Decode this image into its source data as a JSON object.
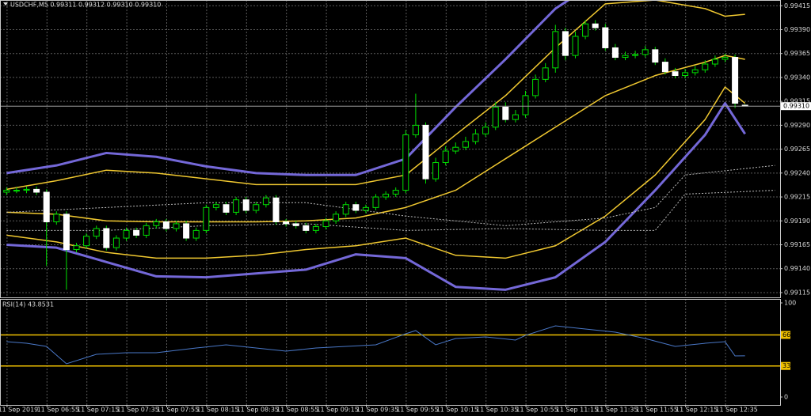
{
  "chart_data": [
    {
      "type": "candlestick",
      "title": "USDCHF,M5  0.99311 0.99312 0.99310 0.99310",
      "categories": [
        null,
        "11 Sep 2019",
        null,
        null,
        null,
        "11 Sep 06:55",
        null,
        null,
        null,
        "11 Sep 07:15",
        null,
        null,
        null,
        "11 Sep 07:35",
        null,
        null,
        null,
        "11 Sep 07:55",
        null,
        null,
        null,
        "11 Sep 08:15",
        null,
        null,
        null,
        "11 Sep 08:35",
        null,
        null,
        null,
        "11 Sep 08:55",
        null,
        null,
        null,
        "11 Sep 09:15",
        null,
        null,
        null,
        "11 Sep 09:35",
        null,
        null,
        null,
        "11 Sep 09:55",
        null,
        null,
        null,
        "11 Sep 10:15",
        null,
        null,
        null,
        "11 Sep 10:35",
        null,
        null,
        null,
        "11 Sep 10:55",
        null,
        null,
        null,
        "11 Sep 11:15",
        null,
        null,
        null,
        "11 Sep 11:35",
        null,
        null,
        null,
        "11 Sep 11:55",
        null,
        null,
        null,
        "11 Sep 12:15",
        null,
        null,
        null,
        "11 Sep 12:35",
        null
      ],
      "open": [
        0.9922,
        0.99222,
        0.99222,
        0.99223,
        0.9922,
        0.99189,
        0.99197,
        0.9916,
        0.99164,
        0.99174,
        0.99182,
        0.99162,
        0.99172,
        0.9918,
        0.99175,
        0.99185,
        0.99189,
        0.99182,
        0.99187,
        0.99172,
        0.9918,
        0.99204,
        0.99207,
        0.99199,
        0.99212,
        0.99201,
        0.99207,
        0.99214,
        0.99189,
        0.99187,
        0.99185,
        0.9918,
        0.99184,
        0.9919,
        0.99197,
        0.99207,
        0.99201,
        0.99204,
        0.99215,
        0.99218,
        0.99222,
        0.9928,
        0.9929,
        0.99234,
        0.99251,
        0.99263,
        0.99267,
        0.99273,
        0.99281,
        0.99288,
        0.99309,
        0.99296,
        0.99301,
        0.99321,
        0.99338,
        0.9935,
        0.99388,
        0.99363,
        0.99383,
        0.99396,
        0.99392,
        0.99371,
        0.99361,
        0.99363,
        0.99364,
        0.99369,
        0.99356,
        0.99346,
        0.99342,
        0.99345,
        0.99348,
        0.99354,
        0.99359,
        0.99361,
        0.99311
      ],
      "high": [
        0.99225,
        0.99225,
        0.99226,
        0.99226,
        0.99223,
        0.992,
        0.992,
        0.99167,
        0.99177,
        0.99185,
        0.99185,
        0.99175,
        0.99183,
        0.99183,
        0.99188,
        0.99192,
        0.99192,
        0.9919,
        0.9919,
        0.99183,
        0.99207,
        0.9921,
        0.9921,
        0.99215,
        0.99215,
        0.9921,
        0.99217,
        0.99217,
        0.99192,
        0.9919,
        0.99188,
        0.99187,
        0.99193,
        0.992,
        0.9921,
        0.9921,
        0.99207,
        0.99218,
        0.99221,
        0.99225,
        0.99285,
        0.99323,
        0.99293,
        0.99256,
        0.99268,
        0.99272,
        0.99278,
        0.99286,
        0.99293,
        0.99314,
        0.99314,
        0.99306,
        0.99326,
        0.99343,
        0.99355,
        0.99395,
        0.99392,
        0.99388,
        0.994,
        0.994,
        0.99396,
        0.99375,
        0.99367,
        0.99368,
        0.99373,
        0.99372,
        0.9936,
        0.9935,
        0.99349,
        0.99352,
        0.99358,
        0.99363,
        0.99365,
        0.99364,
        0.99312
      ],
      "low": [
        0.99217,
        0.99219,
        0.99219,
        0.99217,
        0.99143,
        0.99186,
        0.99118,
        0.99157,
        0.99161,
        0.99171,
        0.99159,
        0.99159,
        0.99169,
        0.99172,
        0.99172,
        0.99182,
        0.99179,
        0.99179,
        0.99169,
        0.99169,
        0.99177,
        0.99201,
        0.99196,
        0.99196,
        0.99198,
        0.99198,
        0.99204,
        0.99186,
        0.99184,
        0.99182,
        0.99177,
        0.99177,
        0.99181,
        0.99187,
        0.99194,
        0.99198,
        0.99198,
        0.99201,
        0.99212,
        0.99215,
        0.99219,
        0.99277,
        0.99229,
        0.99231,
        0.99248,
        0.9926,
        0.99264,
        0.9927,
        0.99278,
        0.99285,
        0.99293,
        0.99293,
        0.99298,
        0.99318,
        0.99335,
        0.99345,
        0.99358,
        0.9936,
        0.9938,
        0.99389,
        0.99368,
        0.99358,
        0.99358,
        0.9936,
        0.99361,
        0.99353,
        0.99343,
        0.99339,
        0.99339,
        0.99342,
        0.99345,
        0.99351,
        0.99356,
        0.99308,
        0.9931
      ],
      "close": [
        0.99222,
        0.99222,
        0.99223,
        0.9922,
        0.99189,
        0.99197,
        0.9916,
        0.99164,
        0.99174,
        0.99182,
        0.99162,
        0.99172,
        0.9918,
        0.99175,
        0.99185,
        0.99189,
        0.99182,
        0.99187,
        0.99172,
        0.9918,
        0.99204,
        0.99207,
        0.99199,
        0.99212,
        0.99201,
        0.99207,
        0.99214,
        0.99189,
        0.99187,
        0.99185,
        0.9918,
        0.99184,
        0.9919,
        0.99197,
        0.99207,
        0.99201,
        0.99204,
        0.99215,
        0.99218,
        0.99222,
        0.9928,
        0.9929,
        0.99234,
        0.99251,
        0.99263,
        0.99267,
        0.99273,
        0.99281,
        0.99288,
        0.99309,
        0.99296,
        0.99301,
        0.99321,
        0.99338,
        0.9935,
        0.99388,
        0.99363,
        0.99383,
        0.99396,
        0.99392,
        0.99371,
        0.99361,
        0.99363,
        0.99364,
        0.99369,
        0.99356,
        0.99346,
        0.99342,
        0.99345,
        0.99348,
        0.99354,
        0.99359,
        0.99361,
        0.99313,
        0.9931
      ],
      "up_color": "#000000",
      "down_color": "#ffffff",
      "wick_color": "#00e000",
      "ylim": [
        0.9911,
        0.99421
      ],
      "yticks": [
        0.99415,
        {
          "value": 0.9939,
          "label": "0.99390"
        },
        0.99365,
        {
          "value": 0.9934,
          "label": "0.99340"
        },
        0.99315,
        {
          "value": 0.9929,
          "label": "0.99290"
        },
        0.99265,
        {
          "value": 0.9924,
          "label": "0.99240"
        },
        0.99215,
        {
          "value": 0.9919,
          "label": "0.99190"
        },
        0.99165,
        {
          "value": 0.9914,
          "label": "0.99140"
        },
        0.99115
      ],
      "grid": true,
      "current_price": {
        "value": 0.9931,
        "label": "0.99310"
      },
      "overlays": [
        {
          "color": "#7468d8",
          "width": 3,
          "x": [
            0,
            5,
            10,
            15,
            20,
            25,
            30,
            35,
            40,
            45,
            50,
            55,
            60,
            65,
            70,
            72,
            74
          ],
          "values": [
            0.9924,
            0.99248,
            0.99261,
            0.99257,
            0.99247,
            0.9924,
            0.99238,
            0.99238,
            0.99255,
            0.99309,
            0.99359,
            0.99412,
            0.99446,
            0.99454,
            0.99433,
            0.99429,
            0.99425
          ]
        },
        {
          "color": "#7468d8",
          "width": 3,
          "x": [
            0,
            5,
            10,
            15,
            20,
            25,
            30,
            35,
            40,
            45,
            50,
            55,
            60,
            65,
            70,
            72,
            74
          ],
          "values": [
            0.99165,
            0.99162,
            0.99147,
            0.99132,
            0.99131,
            0.99135,
            0.99139,
            0.99155,
            0.99151,
            0.99121,
            0.99118,
            0.99131,
            0.99168,
            0.99222,
            0.9928,
            0.99313,
            0.99281
          ]
        },
        {
          "color": "#f0c830",
          "width": 1.5,
          "x": [
            0,
            5,
            10,
            15,
            20,
            25,
            30,
            35,
            40,
            45,
            50,
            55,
            60,
            65,
            70,
            72,
            74
          ],
          "values": [
            0.99223,
            0.99232,
            0.99243,
            0.9924,
            0.99234,
            0.99228,
            0.99228,
            0.99228,
            0.99238,
            0.9928,
            0.99321,
            0.99371,
            0.99417,
            0.99421,
            0.99412,
            0.99404,
            0.99406
          ]
        },
        {
          "color": "#f0c830",
          "width": 1.5,
          "x": [
            0,
            5,
            10,
            15,
            20,
            25,
            30,
            35,
            40,
            45,
            50,
            55,
            60,
            65,
            70,
            72,
            74
          ],
          "values": [
            0.99199,
            0.99197,
            0.9919,
            0.99189,
            0.99189,
            0.99189,
            0.9919,
            0.99193,
            0.99204,
            0.99222,
            0.99255,
            0.99288,
            0.99321,
            0.99342,
            0.99356,
            0.99363,
            0.99359
          ]
        },
        {
          "color": "#f0c830",
          "width": 1.5,
          "x": [
            0,
            5,
            10,
            15,
            20,
            25,
            30,
            35,
            40,
            45,
            50,
            55,
            60,
            65,
            70,
            72,
            74
          ],
          "values": [
            0.99175,
            0.99168,
            0.99157,
            0.99151,
            0.99151,
            0.99154,
            0.9916,
            0.99164,
            0.99172,
            0.99154,
            0.99151,
            0.99164,
            0.99195,
            0.99238,
            0.99296,
            0.9933,
            0.99313
          ]
        },
        {
          "color": "#bbbbbb",
          "width": 1,
          "dashed": true,
          "x": [
            0,
            10,
            20,
            30,
            40,
            50,
            60,
            65,
            68,
            77
          ],
          "values": [
            0.99199,
            0.99204,
            0.99209,
            0.99209,
            0.99195,
            0.99185,
            0.99193,
            0.99204,
            0.99238,
            0.99248
          ]
        },
        {
          "color": "#bbbbbb",
          "width": 1,
          "dashed": true,
          "x": [
            0,
            10,
            20,
            30,
            40,
            50,
            60,
            65,
            68,
            77
          ],
          "values": [
            0.9918,
            0.9918,
            0.99185,
            0.99187,
            0.9918,
            0.99182,
            0.9918,
            0.9918,
            0.99218,
            0.99222
          ]
        }
      ]
    },
    {
      "type": "line",
      "title": "RSI(14) 43.8531",
      "x": [
        0,
        2,
        4,
        6,
        9,
        12,
        15,
        19,
        22,
        25,
        28,
        31,
        34,
        37,
        40,
        41,
        43,
        45,
        48,
        51,
        52,
        55,
        58,
        61,
        64,
        67,
        70,
        72,
        73,
        74
      ],
      "values": [
        58.8,
        57.1,
        53.8,
        35.3,
        45.4,
        47.1,
        47.1,
        52.1,
        55.5,
        52.1,
        48.7,
        52.1,
        53.8,
        55.5,
        67.2,
        70.6,
        55.5,
        62.2,
        63.9,
        60.5,
        65.5,
        75.6,
        72.3,
        68.9,
        62.2,
        53.8,
        57.1,
        58.8,
        43.7,
        43.8531
      ],
      "color": "#4a78c8",
      "ylim": [
        -8.4,
        104.2
      ],
      "yticks": [
        0,
        100
      ],
      "levels": [
        33,
        66
      ],
      "level_color": "#f0c000"
    }
  ]
}
